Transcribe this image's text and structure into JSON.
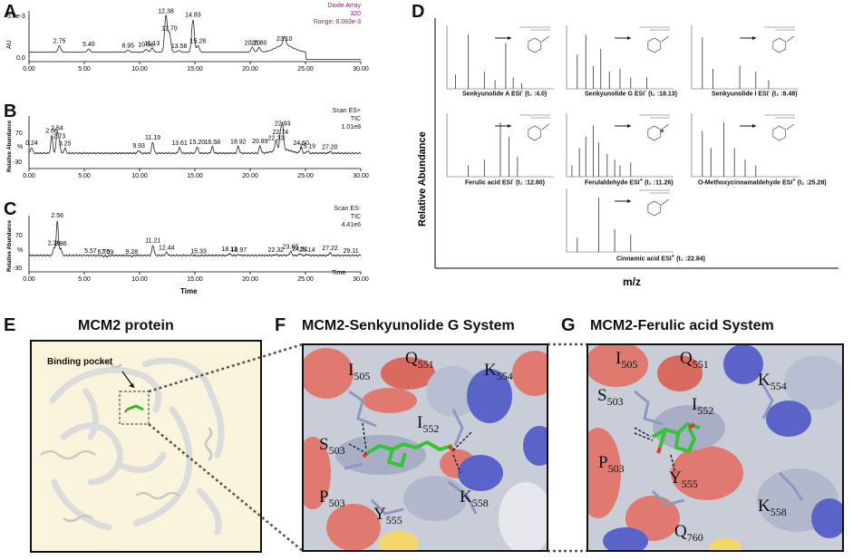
{
  "panels": {
    "A": {
      "label": "A"
    },
    "B": {
      "label": "B"
    },
    "C": {
      "label": "C"
    },
    "D": {
      "label": "D"
    },
    "E": {
      "label": "E",
      "title": "MCM2 protein",
      "binding_pocket": "Binding pocket"
    },
    "F": {
      "label": "F",
      "title": "MCM2-Senkyunolide G System"
    },
    "G": {
      "label": "G",
      "title": "MCM2-Ferulic acid System"
    }
  },
  "chromatograms": {
    "A": {
      "header": [
        "Diode Array",
        "320",
        "Range: 8.083e-3"
      ],
      "header_color": "#8b1a8b",
      "yaxis_label": "AU",
      "ytop_label": "5.0e-3",
      "yticks": [
        "0.0"
      ],
      "xticks": [
        "0.00",
        "5.00",
        "10.00",
        "15.00",
        "20.00",
        "25.00",
        "30.00"
      ]
    },
    "B": {
      "header": [
        "Scan ES+",
        "TIC",
        "1.01e8"
      ],
      "yaxis_label": "Relative Abundance",
      "yticks": [
        "70",
        "-30"
      ],
      "pct_label": "%",
      "xticks": [
        "0.00",
        "5.00",
        "10.00",
        "15.00",
        "20.00",
        "25.00",
        "30.00"
      ]
    },
    "C": {
      "header": [
        "Scan ES-",
        "TIC",
        "4.41e6"
      ],
      "yaxis_label": "Relative Abundance",
      "yticks": [
        "70",
        "-30"
      ],
      "pct_label": "%",
      "xticks": [
        "0.00",
        "5.00",
        "10.00",
        "15.00",
        "20.00",
        "25.00",
        "30.00"
      ],
      "xaxis_label": "Time",
      "xaxis_title": "Time"
    }
  },
  "chart_data": [
    {
      "type": "line",
      "panel": "A",
      "title": "",
      "xlabel": "",
      "ylabel": "AU",
      "xlim": [
        0,
        30
      ],
      "ylim": [
        -0.0012,
        0.0052
      ],
      "peaks": [
        {
          "x": 2.75,
          "y": 0.0008,
          "label": "2.75"
        },
        {
          "x": 5.4,
          "y": 0.0004,
          "label": "5.40"
        },
        {
          "x": 8.95,
          "y": 0.00025,
          "label": "8.95"
        },
        {
          "x": 10.58,
          "y": 0.00035,
          "label": "10.58"
        },
        {
          "x": 11.13,
          "y": 0.0005,
          "label": "11.13"
        },
        {
          "x": 12.38,
          "y": 0.0046,
          "label": "12.38"
        },
        {
          "x": 12.7,
          "y": 0.0024,
          "label": "12.70"
        },
        {
          "x": 13.58,
          "y": 0.0002,
          "label": "13.58"
        },
        {
          "x": 14.83,
          "y": 0.0041,
          "label": "14.83"
        },
        {
          "x": 15.28,
          "y": 0.0008,
          "label": "15.28"
        },
        {
          "x": 20.2,
          "y": 0.0006,
          "label": "20.20"
        },
        {
          "x": 20.8,
          "y": 0.0006,
          "label": "20.80"
        },
        {
          "x": 23.1,
          "y": 0.0011,
          "label": "23.10"
        }
      ]
    },
    {
      "type": "line",
      "panel": "B",
      "title": "",
      "xlabel": "",
      "ylabel": "Relative Abundance",
      "xlim": [
        0,
        30
      ],
      "ylim": [
        -30,
        100
      ],
      "peaks": [
        {
          "x": 0.24,
          "y": 22,
          "label": "0.24"
        },
        {
          "x": 2.06,
          "y": 52,
          "label": "2.06"
        },
        {
          "x": 2.54,
          "y": 58,
          "label": "2.54"
        },
        {
          "x": 2.73,
          "y": 38,
          "label": "2.73"
        },
        {
          "x": 3.25,
          "y": 20,
          "label": "3.25"
        },
        {
          "x": 9.93,
          "y": 15,
          "label": "9.93"
        },
        {
          "x": 11.19,
          "y": 35,
          "label": "11.19"
        },
        {
          "x": 13.61,
          "y": 22,
          "label": "13.61"
        },
        {
          "x": 15.2,
          "y": 24,
          "label": "15.20"
        },
        {
          "x": 16.58,
          "y": 24,
          "label": "16.58"
        },
        {
          "x": 18.92,
          "y": 25,
          "label": "18.92"
        },
        {
          "x": 20.89,
          "y": 26,
          "label": "20.89"
        },
        {
          "x": 22.33,
          "y": 34,
          "label": "22.33"
        },
        {
          "x": 22.74,
          "y": 49,
          "label": "22.74"
        },
        {
          "x": 22.93,
          "y": 70,
          "label": "22.93"
        },
        {
          "x": 24.6,
          "y": 22,
          "label": "24.60"
        },
        {
          "x": 25.19,
          "y": 14,
          "label": "25.19"
        },
        {
          "x": 27.2,
          "y": 12,
          "label": "27.20"
        }
      ]
    },
    {
      "type": "line",
      "panel": "C",
      "title": "",
      "xlabel": "Time",
      "ylabel": "Relative Abundance",
      "xlim": [
        0,
        30
      ],
      "ylim": [
        -30,
        100
      ],
      "peaks": [
        {
          "x": 2.26,
          "y": 26,
          "label": "2.26"
        },
        {
          "x": 2.56,
          "y": 90,
          "label": "2.56"
        },
        {
          "x": 2.86,
          "y": 25,
          "label": "2.86"
        },
        {
          "x": 5.57,
          "y": 8,
          "label": "5.57"
        },
        {
          "x": 6.76,
          "y": 6,
          "label": "6.76"
        },
        {
          "x": 7.09,
          "y": 5,
          "label": "7.09"
        },
        {
          "x": 9.28,
          "y": 6,
          "label": "9.28"
        },
        {
          "x": 11.21,
          "y": 32,
          "label": "11.21"
        },
        {
          "x": 12.44,
          "y": 15,
          "label": "12.44"
        },
        {
          "x": 15.33,
          "y": 7,
          "label": "15.33"
        },
        {
          "x": 18.12,
          "y": 12,
          "label": "18.12"
        },
        {
          "x": 18.97,
          "y": 10,
          "label": "18.97"
        },
        {
          "x": 22.32,
          "y": 10,
          "label": "22.32"
        },
        {
          "x": 23.65,
          "y": 17,
          "label": "23.65"
        },
        {
          "x": 24.51,
          "y": 12,
          "label": "24.51"
        },
        {
          "x": 25.14,
          "y": 10,
          "label": "25.14"
        },
        {
          "x": 27.22,
          "y": 14,
          "label": "27.22"
        },
        {
          "x": 29.11,
          "y": 8,
          "label": "29.11"
        }
      ]
    }
  ],
  "ms_panel": {
    "ylabel": "Relative Abundance",
    "xlabel": "m/z",
    "spectra": [
      {
        "caption_name": "Senkyunolide A",
        "caption_ion": "ESI",
        "caption_charge": "-",
        "caption_rt": "(t₂ :4.0)"
      },
      {
        "caption_name": "Senkyunolide G",
        "caption_ion": "ESI",
        "caption_charge": "-",
        "caption_rt": "(t₂ :18.13)"
      },
      {
        "caption_name": "Senkyunolide I",
        "caption_ion": "ESI",
        "caption_charge": "-",
        "caption_rt": "(t₂ :8.48)"
      },
      {
        "caption_name": "Ferulic acid",
        "caption_ion": "ESI",
        "caption_charge": "-",
        "caption_rt": "(t₂ :12.80)"
      },
      {
        "caption_name": "Ferulaldehyde",
        "caption_ion": "ESI",
        "caption_charge": "+",
        "caption_rt": "(t₂ :11.26)"
      },
      {
        "caption_name": "O-Methoxycinnamaldehyde",
        "caption_ion": "ESI",
        "caption_charge": "+",
        "caption_rt": "(t₂ :25.28)"
      },
      {
        "caption_name": "Cinnamic acid",
        "caption_ion": "ESI",
        "caption_charge": "+",
        "caption_rt": "(t₂ :22.84)"
      }
    ]
  },
  "residues_F": [
    {
      "name": "I",
      "num": "505"
    },
    {
      "name": "Q",
      "num": "551"
    },
    {
      "name": "K",
      "num": "554"
    },
    {
      "name": "I",
      "num": "552"
    },
    {
      "name": "S",
      "num": "503"
    },
    {
      "name": "P",
      "num": "503"
    },
    {
      "name": "Y",
      "num": "555"
    },
    {
      "name": "K",
      "num": "558"
    }
  ],
  "residues_G": [
    {
      "name": "I",
      "num": "505"
    },
    {
      "name": "Q",
      "num": "551"
    },
    {
      "name": "K",
      "num": "554"
    },
    {
      "name": "S",
      "num": "503"
    },
    {
      "name": "I",
      "num": "552"
    },
    {
      "name": "P",
      "num": "503"
    },
    {
      "name": "Y",
      "num": "555"
    },
    {
      "name": "K",
      "num": "558"
    },
    {
      "name": "Q",
      "num": "760"
    }
  ],
  "colors": {
    "surface_gray": "#c9cdd8",
    "surface_red": "#e07a70",
    "surface_blue": "#5a64c8",
    "surface_yellow": "#f3d66c",
    "ligand_green": "#33c533",
    "protein_bg": "#fbf4dc"
  }
}
